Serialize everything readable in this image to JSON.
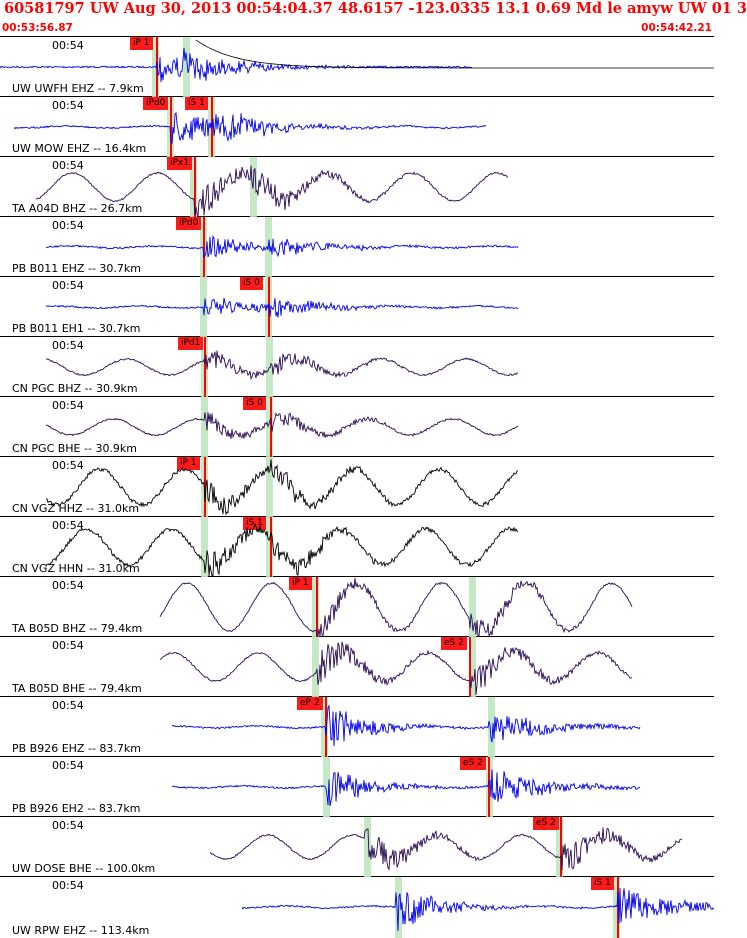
{
  "header": {
    "title": "60581797 UW Aug 30, 2013 00:54:04.37    48.6157 -123.0335 13.1 0.69 Md le amyw UW 01   3",
    "time_start": "00:53:56.87",
    "time_end": "00:54:42.21"
  },
  "colors": {
    "blue": "#0000ee",
    "purple": "#2a0a55",
    "black": "#000000",
    "pick": "#ff1a1a",
    "green": "#bfe5bf"
  },
  "traces": [
    {
      "time": "00:54",
      "label": "UW UWFH EHZ -- 7.9km",
      "color": "blue",
      "pick": "iP 1",
      "decay": true
    },
    {
      "time": "00:54",
      "label": "UW MOW EHZ -- 16.4km",
      "color": "blue",
      "pick": "iPd0",
      "pick2": "iS 1"
    },
    {
      "time": "00:54",
      "label": "TA A04D BHZ -- 26.7km",
      "color": "purple",
      "pick": "iPx1"
    },
    {
      "time": "00:54",
      "label": "PB B011 EHZ -- 30.7km",
      "color": "blue",
      "pick": "iPd0"
    },
    {
      "time": "00:54",
      "label": "PB B011 EH1 -- 30.7km",
      "color": "blue",
      "pick": "iS 0"
    },
    {
      "time": "00:54",
      "label": "CN PGC BHZ -- 30.9km",
      "color": "purple",
      "pick": "iPd1"
    },
    {
      "time": "00:54",
      "label": "CN PGC BHE -- 30.9km",
      "color": "purple",
      "pick": "iS 0"
    },
    {
      "time": "00:54",
      "label": "CN VGZ HHZ -- 31.0km",
      "color": "black",
      "pick": "iP 1"
    },
    {
      "time": "00:54",
      "label": "CN VGZ HHN -- 31.0km",
      "color": "black",
      "pick": "iS 1"
    },
    {
      "time": "00:54",
      "label": "TA B05D BHZ -- 79.4km",
      "color": "purple",
      "pick": "iP 1"
    },
    {
      "time": "00:54",
      "label": "TA B05D BHE -- 79.4km",
      "color": "purple",
      "pick": "eS 2"
    },
    {
      "time": "00:54",
      "label": "PB B926 EHZ -- 83.7km",
      "color": "blue",
      "pick": "eP 2"
    },
    {
      "time": "00:54",
      "label": "PB B926 EH2 -- 83.7km",
      "color": "blue",
      "pick": "eS 2"
    },
    {
      "time": "00:54",
      "label": "UW DOSE BHE -- 100.0km",
      "color": "purple",
      "pick": "eS 2"
    },
    {
      "time": "00:54",
      "label": "UW RPW EHZ -- 113.4km",
      "color": "blue",
      "pick": "iS 1"
    }
  ]
}
